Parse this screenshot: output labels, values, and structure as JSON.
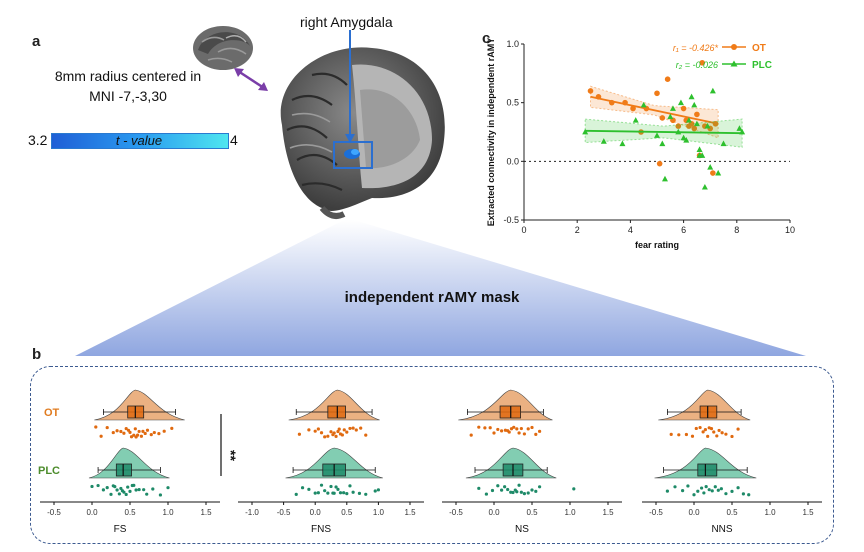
{
  "panel_a": {
    "label": "a",
    "mni_line1": "8mm radius centered in",
    "mni_line2": "MNI -7,-3,30",
    "brain_title": "right Amygdala",
    "colorbar": {
      "min": "3.2",
      "max": "4",
      "title": "t - value",
      "color_low": "#1f5fd6",
      "color_high": "#4fe6f0"
    },
    "mask_label": "independent rAMY mask"
  },
  "panel_b": {
    "label": "b",
    "groups": [
      "OT",
      "PLC"
    ],
    "significance": "**",
    "colors": {
      "OT": "#e8a36c",
      "OT_dot": "#e06a10",
      "PLC": "#6cc4a4",
      "PLC_dot": "#1e8a68"
    },
    "subplots": [
      {
        "name": "FS",
        "ticks": [
          "-0.5",
          "0.0",
          "0.5",
          "1.0",
          "1.5"
        ],
        "xmin": -0.5,
        "xmax": 1.5,
        "OT": {
          "q1": 0.47,
          "median": 0.57,
          "q3": 0.68,
          "wlo": 0.15,
          "whi": 1.1,
          "dots": [
            0.05,
            0.12,
            0.2,
            0.28,
            0.33,
            0.38,
            0.42,
            0.45,
            0.48,
            0.5,
            0.52,
            0.55,
            0.57,
            0.58,
            0.6,
            0.62,
            0.65,
            0.67,
            0.7,
            0.73,
            0.78,
            0.82,
            0.88,
            0.95,
            1.05
          ]
        },
        "PLC": {
          "q1": 0.32,
          "median": 0.41,
          "q3": 0.52,
          "wlo": 0.08,
          "whi": 0.9,
          "dots": [
            0.0,
            0.08,
            0.15,
            0.2,
            0.25,
            0.28,
            0.3,
            0.33,
            0.36,
            0.38,
            0.4,
            0.42,
            0.45,
            0.47,
            0.5,
            0.53,
            0.55,
            0.58,
            0.62,
            0.68,
            0.72,
            0.8,
            0.9,
            1.0
          ]
        }
      },
      {
        "name": "FNS",
        "ticks": [
          "-1.0",
          "-0.5",
          "0.0",
          "0.5",
          "1.0",
          "1.5"
        ],
        "xmin": -1.0,
        "xmax": 1.5,
        "OT": {
          "q1": 0.2,
          "median": 0.35,
          "q3": 0.48,
          "wlo": -0.3,
          "whi": 0.9,
          "dots": [
            -0.25,
            -0.1,
            0.0,
            0.05,
            0.1,
            0.15,
            0.2,
            0.25,
            0.28,
            0.3,
            0.33,
            0.36,
            0.38,
            0.4,
            0.43,
            0.46,
            0.5,
            0.55,
            0.6,
            0.65,
            0.72,
            0.8
          ]
        },
        "PLC": {
          "q1": 0.12,
          "median": 0.3,
          "q3": 0.48,
          "wlo": -0.35,
          "whi": 0.95,
          "dots": [
            -0.3,
            -0.2,
            -0.1,
            0.0,
            0.05,
            0.1,
            0.15,
            0.2,
            0.25,
            0.28,
            0.3,
            0.33,
            0.36,
            0.4,
            0.45,
            0.5,
            0.55,
            0.6,
            0.7,
            0.8,
            0.95,
            1.0
          ]
        }
      },
      {
        "name": "NS",
        "ticks": [
          "-0.5",
          "0.0",
          "0.5",
          "1.0",
          "1.5"
        ],
        "xmin": -0.5,
        "xmax": 1.5,
        "OT": {
          "q1": 0.08,
          "median": 0.22,
          "q3": 0.35,
          "wlo": -0.35,
          "whi": 0.65,
          "dots": [
            -0.3,
            -0.2,
            -0.12,
            -0.05,
            0.0,
            0.05,
            0.1,
            0.15,
            0.18,
            0.2,
            0.23,
            0.26,
            0.3,
            0.33,
            0.36,
            0.4,
            0.45,
            0.5,
            0.55,
            0.6
          ]
        },
        "PLC": {
          "q1": 0.12,
          "median": 0.25,
          "q3": 0.38,
          "wlo": -0.25,
          "whi": 0.7,
          "dots": [
            -0.2,
            -0.1,
            -0.02,
            0.05,
            0.1,
            0.14,
            0.18,
            0.22,
            0.25,
            0.28,
            0.3,
            0.33,
            0.36,
            0.4,
            0.45,
            0.5,
            0.55,
            0.6,
            1.05
          ]
        }
      },
      {
        "name": "NNS",
        "ticks": [
          "-0.5",
          "0.0",
          "0.5",
          "1.0",
          "1.5"
        ],
        "xmin": -0.5,
        "xmax": 1.5,
        "OT": {
          "q1": 0.08,
          "median": 0.18,
          "q3": 0.3,
          "wlo": -0.35,
          "whi": 0.62,
          "dots": [
            -0.3,
            -0.2,
            -0.1,
            -0.02,
            0.03,
            0.08,
            0.12,
            0.15,
            0.18,
            0.2,
            0.23,
            0.26,
            0.3,
            0.33,
            0.37,
            0.42,
            0.5,
            0.58
          ]
        },
        "PLC": {
          "q1": 0.05,
          "median": 0.15,
          "q3": 0.3,
          "wlo": -0.4,
          "whi": 0.7,
          "dots": [
            -0.35,
            -0.25,
            -0.15,
            -0.08,
            0.0,
            0.05,
            0.1,
            0.13,
            0.16,
            0.2,
            0.24,
            0.28,
            0.32,
            0.36,
            0.42,
            0.5,
            0.58,
            0.65,
            0.72
          ]
        }
      }
    ]
  },
  "chart_data": {
    "type": "scatter",
    "xlabel": "fear rating",
    "ylabel": "Extracted connectivity in independent rAMY",
    "xlim": [
      0,
      10
    ],
    "ylim": [
      -0.5,
      1.0
    ],
    "xticks": [
      "0",
      "2",
      "4",
      "6",
      "8",
      "10"
    ],
    "yticks": [
      "-0.5",
      "0.0",
      "0.5",
      "1.0"
    ],
    "reference_line": 0.0,
    "legend_position": "top-right",
    "series": [
      {
        "name": "OT",
        "marker": "circle",
        "color": "#f07b18",
        "annotation": "r₁ = -0.426*",
        "fit": [
          [
            2.5,
            0.55
          ],
          [
            7.3,
            0.32
          ]
        ],
        "x": [
          2.5,
          2.8,
          3.3,
          3.8,
          4.1,
          4.6,
          5.0,
          5.2,
          5.4,
          5.6,
          5.8,
          6.0,
          6.1,
          6.2,
          6.3,
          6.4,
          6.5,
          6.6,
          6.7,
          6.8,
          7.0,
          7.1,
          7.2,
          4.4,
          5.1
        ],
        "y": [
          0.6,
          0.55,
          0.5,
          0.5,
          0.45,
          0.45,
          0.58,
          0.37,
          0.7,
          0.35,
          0.3,
          0.45,
          0.35,
          0.3,
          0.32,
          0.28,
          0.4,
          0.05,
          0.84,
          0.3,
          0.28,
          -0.1,
          0.32,
          0.25,
          -0.02
        ]
      },
      {
        "name": "PLC",
        "marker": "triangle",
        "color": "#2ec02e",
        "annotation": "r₂ = -0.026",
        "fit": [
          [
            2.3,
            0.26
          ],
          [
            8.2,
            0.24
          ]
        ],
        "x": [
          2.3,
          3.0,
          3.7,
          4.2,
          4.5,
          5.0,
          5.2,
          5.5,
          5.6,
          5.8,
          5.9,
          6.0,
          6.1,
          6.2,
          6.3,
          6.4,
          6.5,
          6.6,
          6.7,
          6.8,
          6.9,
          7.0,
          7.1,
          7.3,
          7.5,
          8.1,
          8.2,
          5.3,
          6.6
        ],
        "y": [
          0.25,
          0.17,
          0.15,
          0.35,
          0.48,
          0.22,
          0.15,
          0.38,
          0.45,
          0.25,
          0.5,
          0.2,
          0.18,
          0.35,
          0.55,
          0.48,
          0.32,
          0.05,
          0.05,
          -0.22,
          0.3,
          -0.05,
          0.6,
          -0.1,
          0.15,
          0.28,
          0.25,
          -0.15,
          0.1
        ]
      }
    ]
  }
}
